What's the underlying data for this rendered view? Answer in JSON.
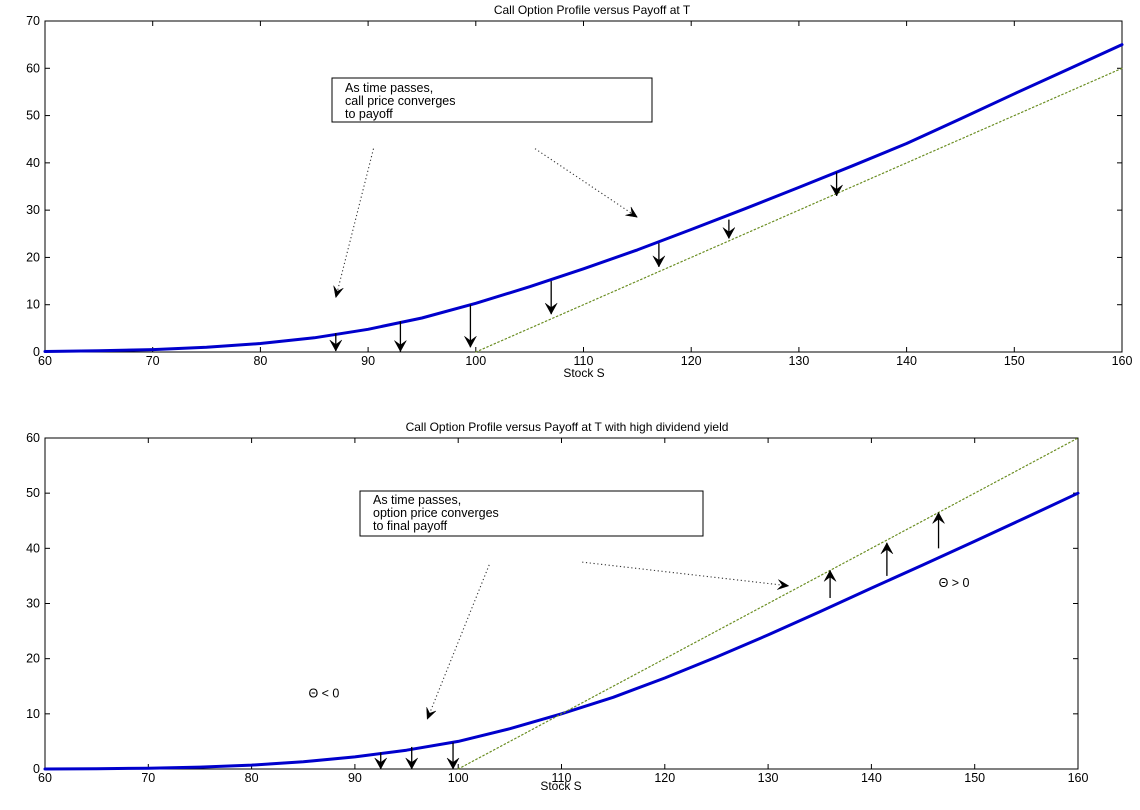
{
  "chart_data": [
    {
      "type": "line",
      "title": "Call Option Profile versus Payoff at T",
      "xlabel": "Stock S",
      "ylabel": "",
      "xlim": [
        60,
        160
      ],
      "ylim": [
        0,
        70
      ],
      "xticks": [
        60,
        70,
        80,
        90,
        100,
        110,
        120,
        130,
        140,
        150,
        160
      ],
      "yticks": [
        0,
        10,
        20,
        30,
        40,
        50,
        60,
        70
      ],
      "series": [
        {
          "style": "solid",
          "color": "#0000cc",
          "x": [
            60,
            65,
            70,
            75,
            80,
            85,
            90,
            95,
            100,
            105,
            110,
            115,
            120,
            125,
            130,
            135,
            140,
            145,
            150,
            155,
            160
          ],
          "y": [
            0.1,
            0.25,
            0.5,
            1.0,
            1.8,
            3.0,
            4.8,
            7.2,
            10.3,
            13.8,
            17.6,
            21.6,
            25.9,
            30.3,
            34.8,
            39.4,
            44.1,
            49.3,
            54.6,
            59.8,
            65.0
          ]
        },
        {
          "style": "dotted",
          "color": "#6b8e23",
          "x": [
            100,
            160
          ],
          "y": [
            0,
            60
          ]
        }
      ],
      "annotation_box": {
        "lines": [
          "As time passes,",
          "call price converges",
          "to payoff"
        ]
      },
      "down_arrows": [
        {
          "x": 87,
          "y_from": 4.0,
          "y_to": 0.2
        },
        {
          "x": 93,
          "y_from": 6.5,
          "y_to": 0.1
        },
        {
          "x": 99.5,
          "y_from": 10.0,
          "y_to": 1.0
        },
        {
          "x": 107,
          "y_from": 15.0,
          "y_to": 8.0
        },
        {
          "x": 117,
          "y_from": 23.0,
          "y_to": 18.0
        },
        {
          "x": 123.5,
          "y_from": 28.0,
          "y_to": 24.0
        },
        {
          "x": 133.5,
          "y_from": 38.0,
          "y_to": 33.0
        }
      ],
      "pointer_arrows": [
        {
          "x1": 90.5,
          "y1": 43.0,
          "x2": 87.0,
          "y2": 11.5
        },
        {
          "x1": 105.5,
          "y1": 43.0,
          "x2": 115.0,
          "y2": 28.5
        }
      ]
    },
    {
      "type": "line",
      "title": "Call Option Profile versus Payoff at T with high dividend yield",
      "xlabel": "Stock S",
      "ylabel": "",
      "xlim": [
        60,
        160
      ],
      "ylim": [
        0,
        60
      ],
      "xticks": [
        60,
        70,
        80,
        90,
        100,
        110,
        120,
        130,
        140,
        150,
        160
      ],
      "yticks": [
        0,
        10,
        20,
        30,
        40,
        50,
        60
      ],
      "series": [
        {
          "style": "solid",
          "color": "#0000cc",
          "x": [
            60,
            65,
            70,
            75,
            80,
            85,
            90,
            95,
            100,
            105,
            110,
            115,
            120,
            125,
            130,
            135,
            140,
            145,
            150,
            155,
            160
          ],
          "y": [
            0.0,
            0.05,
            0.15,
            0.35,
            0.7,
            1.3,
            2.2,
            3.4,
            5.0,
            7.3,
            10.0,
            13.0,
            16.5,
            20.3,
            24.3,
            28.5,
            32.8,
            37.0,
            41.3,
            45.6,
            50.0
          ]
        },
        {
          "style": "dotted",
          "color": "#6b8e23",
          "x": [
            100,
            160
          ],
          "y": [
            0,
            60
          ]
        }
      ],
      "annotation_box": {
        "lines": [
          "As time passes,",
          "option price converges",
          "to final payoff"
        ]
      },
      "labels": [
        {
          "text": "Θ < 0",
          "x": 87,
          "y": 13
        },
        {
          "text": "Θ > 0",
          "x": 148,
          "y": 33
        }
      ],
      "down_arrows": [
        {
          "x": 92.5,
          "y_from": 3.0,
          "y_to": 0.0
        },
        {
          "x": 95.5,
          "y_from": 4.0,
          "y_to": 0.0
        },
        {
          "x": 99.5,
          "y_from": 4.8,
          "y_to": 0.0
        }
      ],
      "up_arrows": [
        {
          "x": 136,
          "y_from": 31.0,
          "y_to": 36.0
        },
        {
          "x": 141.5,
          "y_from": 35.0,
          "y_to": 41.0
        },
        {
          "x": 146.5,
          "y_from": 40.0,
          "y_to": 46.5
        }
      ],
      "pointer_arrows": [
        {
          "x1": 103.0,
          "y1": 37.0,
          "x2": 97.0,
          "y2": 9.0
        },
        {
          "x1": 112.0,
          "y1": 37.5,
          "x2": 132.0,
          "y2": 33.2
        }
      ]
    }
  ]
}
